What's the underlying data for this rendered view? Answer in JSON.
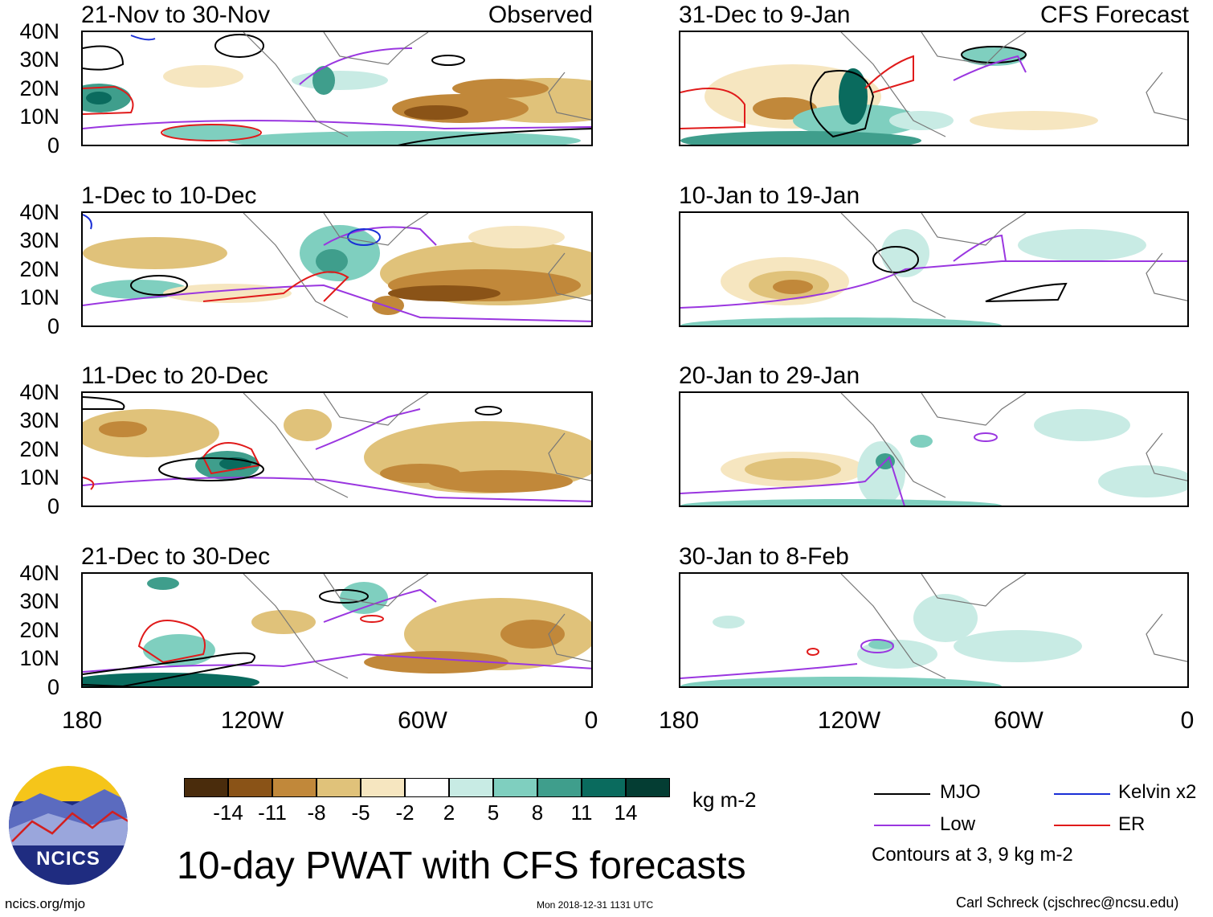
{
  "observed_panels": [
    {
      "title": "21-Nov to 30-Nov",
      "tag": "Observed"
    },
    {
      "title": "1-Dec to 10-Dec",
      "tag": ""
    },
    {
      "title": "11-Dec to 20-Dec",
      "tag": ""
    },
    {
      "title": "21-Dec to 30-Dec",
      "tag": ""
    }
  ],
  "forecast_panels": [
    {
      "title": "31-Dec to 9-Jan",
      "tag": "CFS Forecast"
    },
    {
      "title": "10-Jan to 19-Jan",
      "tag": ""
    },
    {
      "title": "20-Jan to 29-Jan",
      "tag": ""
    },
    {
      "title": "30-Jan to 8-Feb",
      "tag": ""
    }
  ],
  "lat_labels": [
    "40N",
    "30N",
    "20N",
    "10N",
    "0"
  ],
  "lon_labels": [
    "180",
    "120W",
    "60W",
    "0"
  ],
  "colorbar": {
    "colors": [
      "#4a2c0c",
      "#8a5317",
      "#c1883a",
      "#e0c27a",
      "#f6e6c0",
      "#ffffff",
      "#c8ebe4",
      "#7fcfbf",
      "#3f9e8c",
      "#0a6b5e",
      "#043d33"
    ],
    "ticks": [
      "-14",
      "-11",
      "-8",
      "-5",
      "-2",
      "2",
      "5",
      "8",
      "11",
      "14"
    ],
    "unit": "kg m-2"
  },
  "legend": {
    "items": [
      {
        "label": "MJO",
        "color": "#000000"
      },
      {
        "label": "Kelvin x2",
        "color": "#1a2fd6"
      },
      {
        "label": "Low",
        "color": "#9a36e0"
      },
      {
        "label": "ER",
        "color": "#e01a1a"
      }
    ],
    "note": "Contours at 3, 9 kg m-2"
  },
  "title": "10-day PWAT with CFS forecasts",
  "footer": {
    "left": "ncics.org/mjo",
    "center": "Mon 2018-12-31 1131 UTC",
    "right": "Carl Schreck (cjschrec@ncsu.edu)"
  },
  "logo_text": "NCICS"
}
